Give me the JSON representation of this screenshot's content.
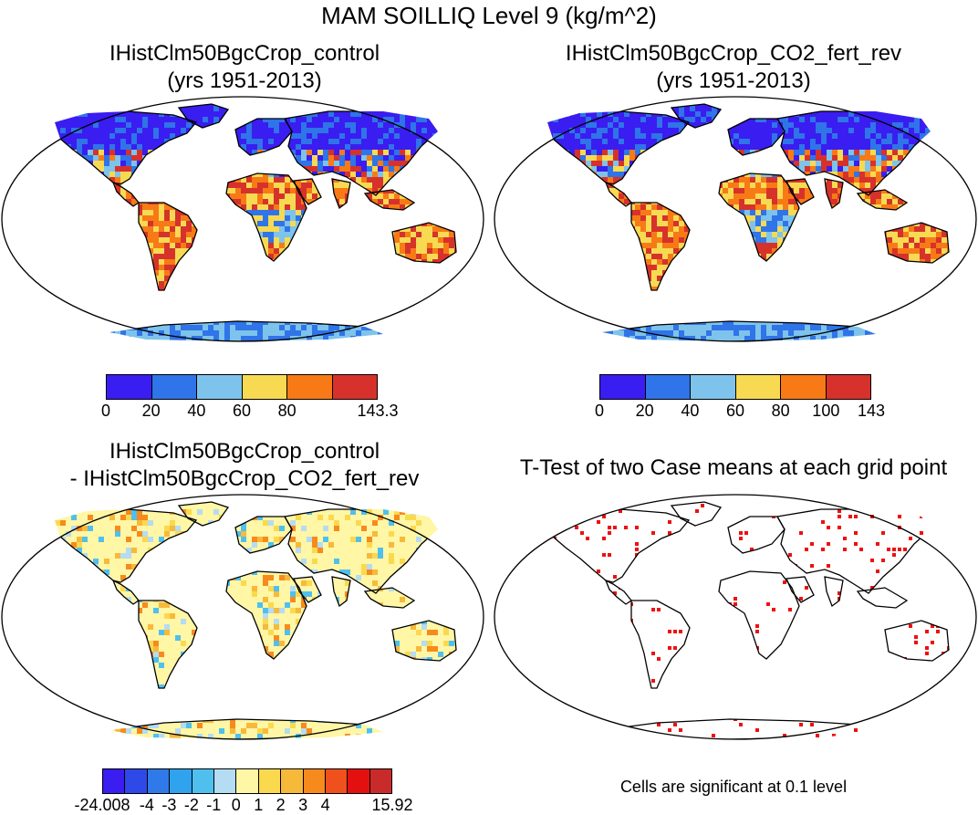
{
  "title": "MAM SOILLIQ Level 9 (kg/m^2)",
  "panels": [
    {
      "id": "control",
      "title_line1": "IHistClm50BgcCrop_control",
      "title_line2": "(yrs 1951-2013)",
      "colorbar": {
        "colors": [
          "#3a1df0",
          "#2f74e8",
          "#7ec3eb",
          "#f7da52",
          "#f77a17",
          "#d6322b"
        ],
        "labels": [
          "0",
          "20",
          "40",
          "60",
          "80",
          "143.3"
        ]
      }
    },
    {
      "id": "co2_fert_rev",
      "title_line1": "IHistClm50BgcCrop_CO2_fert_rev",
      "title_line2": "(yrs 1951-2013)",
      "colorbar": {
        "colors": [
          "#3a1df0",
          "#2f74e8",
          "#7ec3eb",
          "#f7da52",
          "#f77a17",
          "#d6322b"
        ],
        "labels": [
          "0",
          "20",
          "40",
          "60",
          "80",
          "100",
          "143"
        ]
      }
    },
    {
      "id": "difference",
      "title_line1": "IHistClm50BgcCrop_control",
      "title_line2": "- IHistClm50BgcCrop_CO2_fert_rev",
      "colorbar": {
        "colors": [
          "#3a1df0",
          "#2f48e8",
          "#2f7ae8",
          "#2fa3ee",
          "#4fc0ee",
          "#b4dcf2",
          "#fff6a6",
          "#fbd94e",
          "#f7b93a",
          "#f78a1d",
          "#f0501b",
          "#e3100f",
          "#c92b2b"
        ],
        "labels": [
          "-24.008",
          "-4",
          "-3",
          "-2",
          "-1",
          "0",
          "1",
          "2",
          "3",
          "4",
          "15.92"
        ]
      }
    },
    {
      "id": "ttest",
      "title_line1": "T-Test of two Case means at each grid point",
      "note": "Cells are significant at 0.1 level",
      "sig_color": "#ee1010"
    }
  ]
}
